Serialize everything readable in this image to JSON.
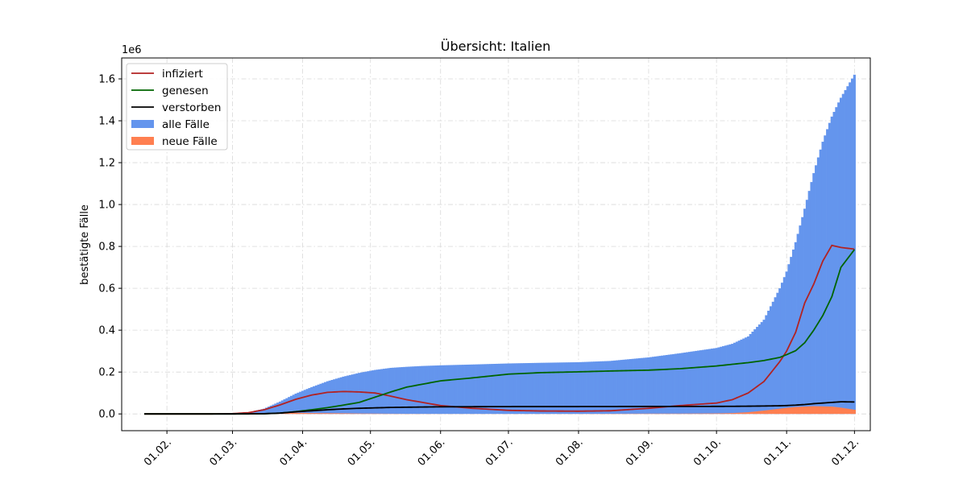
{
  "chart_data": {
    "type": "area",
    "title": "Übersicht: Italien",
    "xlabel": "",
    "ylabel": "bestätigte Fälle",
    "y_scale_label": "1e6",
    "ylim": [
      -0.08,
      1.7
    ],
    "xlim": [
      "2020-01-12",
      "2020-12-08"
    ],
    "x_ticks": [
      "2020-02-01",
      "2020-03-01",
      "2020-04-01",
      "2020-05-01",
      "2020-06-01",
      "2020-07-01",
      "2020-08-01",
      "2020-09-01",
      "2020-10-01",
      "2020-11-01",
      "2020-12-01"
    ],
    "x_tick_labels": [
      "01.02.",
      "01.03.",
      "01.04.",
      "01.05.",
      "01.06.",
      "01.07.",
      "01.08.",
      "01.09.",
      "01.10.",
      "01.11.",
      "01.12."
    ],
    "y_ticks": [
      0.0,
      0.2,
      0.4,
      0.6,
      0.8,
      1.0,
      1.2,
      1.4,
      1.6
    ],
    "y_tick_labels": [
      "0.0",
      "0.2",
      "0.4",
      "0.6",
      "0.8",
      "1.0",
      "1.2",
      "1.4",
      "1.6"
    ],
    "grid": true,
    "legend_position": "top-left",
    "x": [
      "2020-01-22",
      "2020-02-21",
      "2020-03-01",
      "2020-03-08",
      "2020-03-15",
      "2020-03-22",
      "2020-03-29",
      "2020-04-05",
      "2020-04-12",
      "2020-04-19",
      "2020-04-26",
      "2020-05-03",
      "2020-05-10",
      "2020-05-17",
      "2020-05-24",
      "2020-06-01",
      "2020-06-15",
      "2020-07-01",
      "2020-07-15",
      "2020-08-01",
      "2020-08-15",
      "2020-09-01",
      "2020-09-15",
      "2020-10-01",
      "2020-10-08",
      "2020-10-15",
      "2020-10-22",
      "2020-10-29",
      "2020-11-01",
      "2020-11-05",
      "2020-11-09",
      "2020-11-13",
      "2020-11-17",
      "2020-11-21",
      "2020-11-25",
      "2020-12-01"
    ],
    "series": [
      {
        "name": "infiziert",
        "kind": "line",
        "color": "#b22222",
        "values": [
          0,
          0,
          0.0015,
          0.006,
          0.02,
          0.043,
          0.07,
          0.09,
          0.103,
          0.107,
          0.105,
          0.1,
          0.085,
          0.068,
          0.055,
          0.04,
          0.027,
          0.017,
          0.014,
          0.013,
          0.015,
          0.027,
          0.04,
          0.052,
          0.068,
          0.1,
          0.155,
          0.25,
          0.3,
          0.39,
          0.53,
          0.62,
          0.73,
          0.805,
          0.795,
          0.787
        ]
      },
      {
        "name": "genesen",
        "kind": "line",
        "color": "#006400",
        "values": [
          0,
          0,
          0,
          0,
          0.001,
          0.004,
          0.011,
          0.02,
          0.03,
          0.042,
          0.055,
          0.08,
          0.105,
          0.128,
          0.142,
          0.158,
          0.172,
          0.19,
          0.197,
          0.201,
          0.205,
          0.209,
          0.216,
          0.229,
          0.237,
          0.245,
          0.255,
          0.27,
          0.283,
          0.302,
          0.34,
          0.4,
          0.47,
          0.56,
          0.7,
          0.785
        ]
      },
      {
        "name": "verstorben",
        "kind": "line",
        "color": "#000000",
        "values": [
          0,
          0,
          0,
          0.0004,
          0.001,
          0.004,
          0.01,
          0.015,
          0.02,
          0.024,
          0.027,
          0.029,
          0.031,
          0.032,
          0.033,
          0.034,
          0.0345,
          0.035,
          0.0351,
          0.0352,
          0.0354,
          0.0357,
          0.0358,
          0.036,
          0.0363,
          0.037,
          0.0378,
          0.039,
          0.04,
          0.042,
          0.045,
          0.049,
          0.052,
          0.055,
          0.058,
          0.057
        ]
      },
      {
        "name": "alle Fälle",
        "kind": "bar",
        "color": "#6495ed",
        "values": [
          0,
          0,
          0.0017,
          0.0073,
          0.025,
          0.059,
          0.097,
          0.128,
          0.156,
          0.178,
          0.196,
          0.21,
          0.22,
          0.225,
          0.229,
          0.232,
          0.236,
          0.241,
          0.244,
          0.247,
          0.253,
          0.27,
          0.29,
          0.315,
          0.335,
          0.37,
          0.45,
          0.6,
          0.68,
          0.82,
          0.98,
          1.15,
          1.3,
          1.42,
          1.51,
          1.62
        ]
      },
      {
        "name": "neue Fälle",
        "kind": "bar",
        "color": "#ff7f50",
        "values": [
          0,
          0,
          0.0003,
          0.001,
          0.0035,
          0.0055,
          0.0055,
          0.004,
          0.0035,
          0.003,
          0.002,
          0.0015,
          0.001,
          0.0007,
          0.0005,
          0.0003,
          0.0003,
          0.0003,
          0.0003,
          0.0004,
          0.0008,
          0.0015,
          0.0015,
          0.0025,
          0.004,
          0.008,
          0.016,
          0.025,
          0.029,
          0.033,
          0.035,
          0.037,
          0.036,
          0.035,
          0.03,
          0.02
        ]
      }
    ]
  }
}
